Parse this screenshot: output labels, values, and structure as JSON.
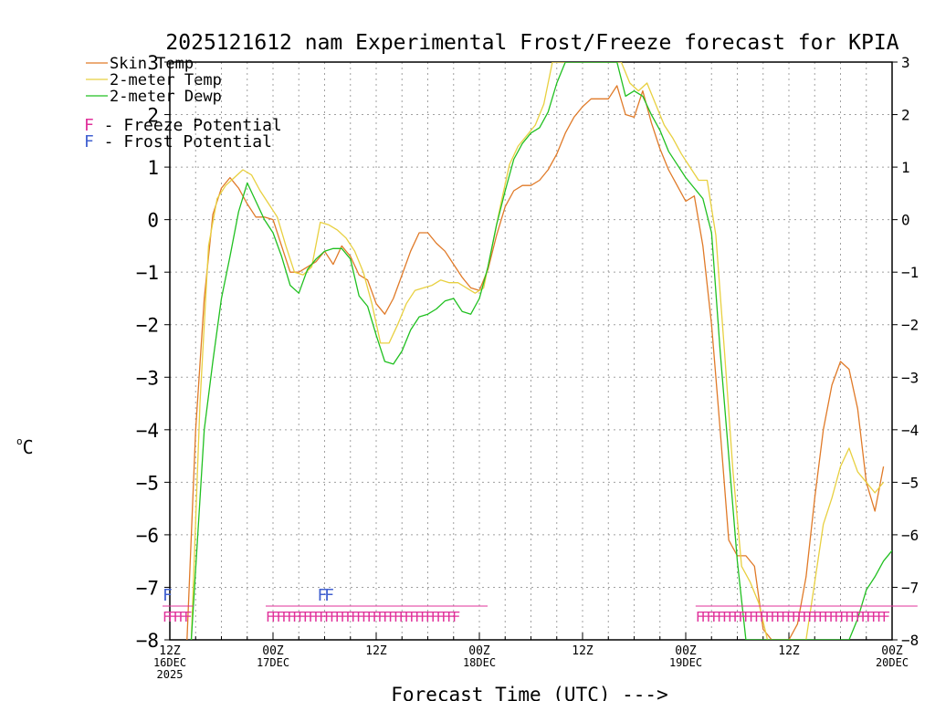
{
  "chart_data": {
    "type": "line",
    "title": "2025121612 nam Experimental Frost/Freeze forecast for KPIA",
    "xlabel": "Forecast Time (UTC) --->",
    "ylabel": "°C",
    "ylabel_unit": "C",
    "ylim": [
      -8,
      3
    ],
    "yticks": [
      3,
      2,
      1,
      0,
      -1,
      -2,
      -3,
      -4,
      -5,
      -6,
      -7,
      -8
    ],
    "ytick_labels": [
      "3",
      "2",
      "1",
      "0",
      "−1",
      "−2",
      "−3",
      "−4",
      "−5",
      "−6",
      "−7",
      "−8"
    ],
    "xlim": [
      0,
      84
    ],
    "grid": true,
    "xticks": [
      {
        "x": 0,
        "lines": [
          "12Z",
          "16DEC",
          "2025"
        ]
      },
      {
        "x": 12,
        "lines": [
          "00Z",
          "17DEC"
        ]
      },
      {
        "x": 24,
        "lines": [
          "12Z"
        ]
      },
      {
        "x": 36,
        "lines": [
          "00Z",
          "18DEC"
        ]
      },
      {
        "x": 48,
        "lines": [
          "12Z"
        ]
      },
      {
        "x": 60,
        "lines": [
          "00Z",
          "19DEC"
        ]
      },
      {
        "x": 72,
        "lines": [
          "12Z"
        ]
      },
      {
        "x": 84,
        "lines": [
          "00Z",
          "20DEC"
        ]
      }
    ],
    "legend": [
      {
        "label": "Skin Temp",
        "color": "#e07a28"
      },
      {
        "label": "2-meter Temp",
        "color": "#e8d040"
      },
      {
        "label": "2-meter Dewp",
        "color": "#20c020"
      }
    ],
    "potential_legend": [
      {
        "symbol": "F",
        "text": " - Freeze Potential",
        "color": "#e0309a"
      },
      {
        "symbol": "F",
        "text": " - Frost Potential",
        "color": "#4060d0"
      }
    ],
    "series": [
      {
        "name": "Skin Temp",
        "color": "#e07a28",
        "points": [
          [
            2,
            -8
          ],
          [
            3,
            -4
          ],
          [
            4,
            -1.5
          ],
          [
            5,
            0.1
          ],
          [
            6,
            0.6
          ],
          [
            7,
            0.8
          ],
          [
            8,
            0.6
          ],
          [
            9,
            0.3
          ],
          [
            10,
            0.05
          ],
          [
            11,
            0.05
          ],
          [
            12,
            0
          ],
          [
            13,
            -0.5
          ],
          [
            14,
            -1
          ],
          [
            15,
            -1
          ],
          [
            16,
            -0.9
          ],
          [
            17,
            -0.8
          ],
          [
            18,
            -0.6
          ],
          [
            19,
            -0.85
          ],
          [
            20,
            -0.5
          ],
          [
            21,
            -0.7
          ],
          [
            22,
            -1.05
          ],
          [
            23,
            -1.15
          ],
          [
            24,
            -1.6
          ],
          [
            25,
            -1.8
          ],
          [
            26,
            -1.5
          ],
          [
            27,
            -1.05
          ],
          [
            28,
            -0.6
          ],
          [
            29,
            -0.25
          ],
          [
            30,
            -0.25
          ],
          [
            31,
            -0.45
          ],
          [
            32,
            -0.6
          ],
          [
            33,
            -0.85
          ],
          [
            34,
            -1.1
          ],
          [
            35,
            -1.3
          ],
          [
            36,
            -1.35
          ],
          [
            37,
            -0.95
          ],
          [
            38,
            -0.3
          ],
          [
            39,
            0.25
          ],
          [
            40,
            0.55
          ],
          [
            41,
            0.65
          ],
          [
            42,
            0.65
          ],
          [
            43,
            0.75
          ],
          [
            44,
            0.95
          ],
          [
            45,
            1.25
          ],
          [
            46,
            1.65
          ],
          [
            47,
            1.95
          ],
          [
            48,
            2.15
          ],
          [
            49,
            2.3
          ],
          [
            50,
            2.3
          ],
          [
            51,
            2.3
          ],
          [
            52,
            2.55
          ],
          [
            53,
            2
          ],
          [
            54,
            1.95
          ],
          [
            55,
            2.45
          ],
          [
            56,
            1.85
          ],
          [
            57,
            1.35
          ],
          [
            58,
            0.95
          ],
          [
            59,
            0.65
          ],
          [
            60,
            0.35
          ],
          [
            61,
            0.45
          ],
          [
            62,
            -0.5
          ],
          [
            63,
            -2
          ],
          [
            64,
            -4
          ],
          [
            65,
            -6.1
          ],
          [
            66,
            -6.4
          ],
          [
            67,
            -6.4
          ],
          [
            68,
            -6.6
          ],
          [
            69,
            -7.8
          ],
          [
            70,
            -8
          ],
          [
            71,
            -8
          ],
          [
            72,
            -8
          ],
          [
            73,
            -7.7
          ],
          [
            74,
            -6.8
          ],
          [
            75,
            -5.3
          ],
          [
            76,
            -4
          ],
          [
            77,
            -3.15
          ],
          [
            78,
            -2.7
          ],
          [
            79,
            -2.85
          ],
          [
            80,
            -3.6
          ],
          [
            81,
            -5
          ],
          [
            82,
            -5.55
          ],
          [
            83,
            -4.7
          ]
        ]
      },
      {
        "name": "2-meter Temp",
        "color": "#e8d040",
        "points": [
          [
            2.5,
            -8
          ],
          [
            3.5,
            -3.5
          ],
          [
            4.5,
            -0.5
          ],
          [
            5.5,
            0.4
          ],
          [
            6.5,
            0.65
          ],
          [
            7.5,
            0.8
          ],
          [
            8.5,
            0.95
          ],
          [
            9.5,
            0.85
          ],
          [
            10.5,
            0.55
          ],
          [
            11.5,
            0.3
          ],
          [
            12.5,
            0.05
          ],
          [
            13.5,
            -0.5
          ],
          [
            14.5,
            -1
          ],
          [
            15.5,
            -1.05
          ],
          [
            16.5,
            -0.9
          ],
          [
            17.5,
            -0.05
          ],
          [
            18.5,
            -0.1
          ],
          [
            19.5,
            -0.2
          ],
          [
            20.5,
            -0.35
          ],
          [
            21.5,
            -0.6
          ],
          [
            22.5,
            -1
          ],
          [
            23.5,
            -1.6
          ],
          [
            24.5,
            -2.35
          ],
          [
            25.5,
            -2.35
          ],
          [
            26.5,
            -2
          ],
          [
            27.5,
            -1.6
          ],
          [
            28.5,
            -1.35
          ],
          [
            29.5,
            -1.3
          ],
          [
            30.5,
            -1.25
          ],
          [
            31.5,
            -1.15
          ],
          [
            32.5,
            -1.2
          ],
          [
            33.5,
            -1.2
          ],
          [
            34.5,
            -1.3
          ],
          [
            35.5,
            -1.4
          ],
          [
            36.5,
            -1.3
          ],
          [
            37.5,
            -0.5
          ],
          [
            38.5,
            0.3
          ],
          [
            39.5,
            1.05
          ],
          [
            40.5,
            1.4
          ],
          [
            41.5,
            1.6
          ],
          [
            42.5,
            1.8
          ],
          [
            43.5,
            2.2
          ],
          [
            44.5,
            3
          ],
          [
            52.5,
            3
          ],
          [
            53.5,
            2.6
          ],
          [
            54.5,
            2.45
          ],
          [
            55.5,
            2.6
          ],
          [
            56.5,
            2.2
          ],
          [
            57.5,
            1.8
          ],
          [
            58.5,
            1.55
          ],
          [
            59.5,
            1.25
          ],
          [
            60.5,
            1
          ],
          [
            61.5,
            0.75
          ],
          [
            62.5,
            0.75
          ],
          [
            63.5,
            -0.3
          ],
          [
            64.5,
            -2.5
          ],
          [
            65.5,
            -4.8
          ],
          [
            66.5,
            -6.6
          ],
          [
            67.5,
            -6.9
          ],
          [
            68.5,
            -7.3
          ],
          [
            69.5,
            -8
          ],
          [
            74,
            -8
          ],
          [
            75,
            -6.9
          ],
          [
            76,
            -5.8
          ],
          [
            77,
            -5.3
          ],
          [
            78,
            -4.7
          ],
          [
            79,
            -4.35
          ],
          [
            80,
            -4.8
          ],
          [
            81,
            -5
          ],
          [
            82,
            -5.2
          ],
          [
            83,
            -5
          ]
        ]
      },
      {
        "name": "2-meter Dewp",
        "color": "#20c020",
        "points": [
          [
            2.5,
            -8
          ],
          [
            4,
            -4
          ],
          [
            5,
            -2.7
          ],
          [
            6,
            -1.5
          ],
          [
            7,
            -0.7
          ],
          [
            8,
            0.15
          ],
          [
            9,
            0.7
          ],
          [
            10,
            0.35
          ],
          [
            11,
            0
          ],
          [
            12,
            -0.25
          ],
          [
            13,
            -0.7
          ],
          [
            14,
            -1.25
          ],
          [
            15,
            -1.4
          ],
          [
            16,
            -0.95
          ],
          [
            17,
            -0.75
          ],
          [
            18,
            -0.6
          ],
          [
            19,
            -0.55
          ],
          [
            20,
            -0.55
          ],
          [
            21,
            -0.75
          ],
          [
            22,
            -1.45
          ],
          [
            23,
            -1.65
          ],
          [
            24,
            -2.2
          ],
          [
            25,
            -2.7
          ],
          [
            26,
            -2.75
          ],
          [
            27,
            -2.5
          ],
          [
            28,
            -2.1
          ],
          [
            29,
            -1.85
          ],
          [
            30,
            -1.8
          ],
          [
            31,
            -1.7
          ],
          [
            32,
            -1.55
          ],
          [
            33,
            -1.5
          ],
          [
            34,
            -1.75
          ],
          [
            35,
            -1.8
          ],
          [
            36,
            -1.5
          ],
          [
            37,
            -0.9
          ],
          [
            38,
            -0.1
          ],
          [
            39,
            0.55
          ],
          [
            40,
            1.15
          ],
          [
            41,
            1.45
          ],
          [
            42,
            1.65
          ],
          [
            43,
            1.75
          ],
          [
            44,
            2.05
          ],
          [
            45,
            2.6
          ],
          [
            46,
            3
          ],
          [
            52,
            3
          ],
          [
            53,
            2.35
          ],
          [
            54,
            2.45
          ],
          [
            55,
            2.35
          ],
          [
            56,
            2
          ],
          [
            57,
            1.7
          ],
          [
            58,
            1.3
          ],
          [
            59,
            1.05
          ],
          [
            60,
            0.8
          ],
          [
            61,
            0.6
          ],
          [
            62,
            0.4
          ],
          [
            63,
            -0.25
          ],
          [
            64,
            -2.5
          ],
          [
            65,
            -4.5
          ],
          [
            66,
            -6.5
          ],
          [
            67,
            -8
          ],
          [
            79,
            -8
          ],
          [
            80,
            -7.6
          ],
          [
            81,
            -7.05
          ],
          [
            82,
            -6.8
          ],
          [
            83,
            -6.5
          ],
          [
            84,
            -6.3
          ]
        ]
      }
    ],
    "freeze_potential": [
      {
        "x": 0,
        "text": "FFFFF"
      },
      {
        "x": 12,
        "text": "FFFFFFFFFFFFFFFFFFFFFFFFFFFFFFFFFFFF"
      },
      {
        "x": 62,
        "text": "FFFFFFFFFFFFFFFFFFFFFFFFFFFFFFFFFFFF"
      }
    ],
    "frost_potential": [
      {
        "x": 0,
        "text": "F"
      },
      {
        "x": 18,
        "text": "FF"
      }
    ]
  }
}
